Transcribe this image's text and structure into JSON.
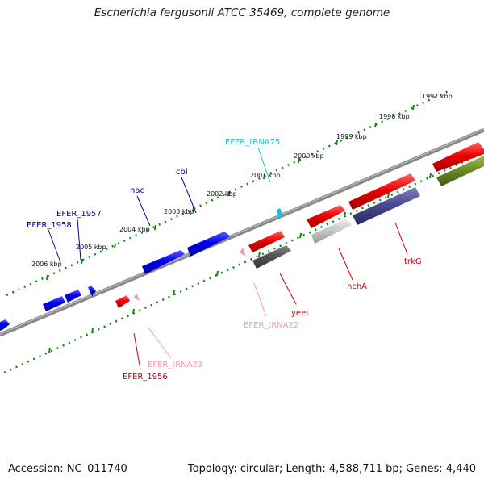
{
  "title": "Escherichia fergusonii ATCC 35469, complete genome",
  "footer": {
    "accession": "Accession: NC_011740",
    "topology": "Topology: circular; Length: 4,588,711 bp; Genes: 4,440"
  },
  "kbp_labels": [
    "1997 kbp",
    "1998 kbp",
    "1999 kbp",
    "2000 kbp",
    "2001 kbp",
    "2002 kbp",
    "2003 kbp",
    "2004 kbp",
    "2005 kbp",
    "2006 kbp"
  ],
  "gene_labels": {
    "efer_1958": "EFER_1958",
    "efer_1957": "EFER_1957",
    "nac": "nac",
    "cbl": "cbl",
    "efer_trna75": "EFER_tRNA75",
    "trkg": "trkG",
    "hcha": "hchA",
    "yeei": "yeeI",
    "efer_trna22": "EFER_tRNA22",
    "efer_trna23": "EFER_tRNA23",
    "efer_1956": "EFER_1956"
  },
  "colors": {
    "forward_gene": "#0000ee",
    "reverse_gene": "#ee0000",
    "trna_forward": "#22bbdd",
    "trna_reverse": "#ee99bb",
    "ruler": "#118811",
    "backbone": "#888888"
  }
}
